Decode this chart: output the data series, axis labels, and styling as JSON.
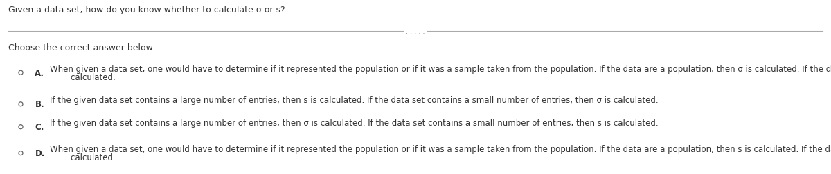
{
  "title": "Given a data set, how do you know whether to calculate σ or s?",
  "subtitle": "Choose the correct answer below.",
  "options": [
    {
      "label": "A.",
      "line1": "When given a data set, one would have to determine if it represented the population or if it was a sample taken from the population. If the data are a population, then σ is calculated. If the data are a sample, then s is",
      "line2": "        calculated."
    },
    {
      "label": "B.",
      "line1": "If the given data set contains a large number of entries, then s is calculated. If the data set contains a small number of entries, then σ is calculated.",
      "line2": null
    },
    {
      "label": "C.",
      "line1": "If the given data set contains a large number of entries, then σ is calculated. If the data set contains a small number of entries, then s is calculated.",
      "line2": null
    },
    {
      "label": "D.",
      "line1": "When given a data set, one would have to determine if it represented the population or if it was a sample taken from the population. If the data are a population, then s is calculated. If the data are a sample, then σ is",
      "line2": "        calculated."
    }
  ],
  "bg_color": "#ffffff",
  "text_color": "#333333",
  "circle_color": "#666666",
  "divider_color": "#aaaaaa",
  "dots_color": "#888888",
  "title_fontsize": 9.0,
  "subtitle_fontsize": 9.0,
  "option_fontsize": 8.5,
  "fig_width": 12.0,
  "fig_height": 2.53
}
